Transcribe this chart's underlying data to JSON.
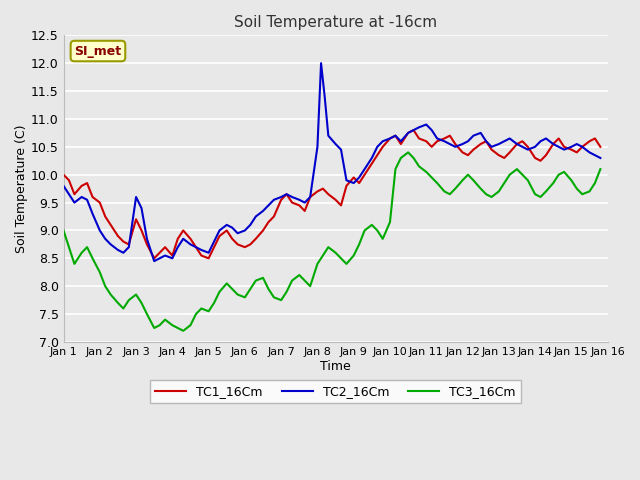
{
  "title": "Soil Temperature at -16cm",
  "xlabel": "Time",
  "ylabel": "Soil Temperature (C)",
  "ylim": [
    7.0,
    12.5
  ],
  "background_color": "#e8e8e8",
  "plot_bg_color": "#e8e8e8",
  "grid_color": "#ffffff",
  "legend_label": "SI_met",
  "legend_bg": "#ffffcc",
  "legend_border": "#999900",
  "tc1_color": "#cc0000",
  "tc2_color": "#0000cc",
  "tc3_color": "#00aa00",
  "tc1_label": "TC1_16Cm",
  "tc2_label": "TC2_16Cm",
  "tc3_label": "TC3_16Cm",
  "x_ticks": [
    1,
    2,
    3,
    4,
    5,
    6,
    7,
    8,
    9,
    10,
    11,
    12,
    13,
    14,
    15,
    16
  ],
  "x_tick_labels": [
    "Jan 1",
    "Jan 2",
    "Jan 3",
    "Jan 4",
    "Jan 5",
    "Jan 6",
    "Jan 7",
    "Jan 8",
    "Jan 9",
    "Jan 10",
    "Jan 11",
    "Jan 12",
    "Jan 13",
    "Jan 14",
    "Jan 15",
    "Jan 16"
  ],
  "TC1_x": [
    1.0,
    1.15,
    1.3,
    1.5,
    1.65,
    1.8,
    2.0,
    2.15,
    2.3,
    2.5,
    2.65,
    2.8,
    3.0,
    3.15,
    3.3,
    3.5,
    3.65,
    3.8,
    4.0,
    4.15,
    4.3,
    4.5,
    4.65,
    4.8,
    5.0,
    5.15,
    5.3,
    5.5,
    5.65,
    5.8,
    6.0,
    6.15,
    6.3,
    6.5,
    6.65,
    6.8,
    7.0,
    7.15,
    7.3,
    7.5,
    7.65,
    7.8,
    8.0,
    8.15,
    8.3,
    8.5,
    8.65,
    8.8,
    9.0,
    9.15,
    9.3,
    9.5,
    9.65,
    9.8,
    10.0,
    10.15,
    10.3,
    10.5,
    10.65,
    10.8,
    11.0,
    11.15,
    11.3,
    11.5,
    11.65,
    11.8,
    12.0,
    12.15,
    12.3,
    12.5,
    12.65,
    12.8,
    13.0,
    13.15,
    13.3,
    13.5,
    13.65,
    13.8,
    14.0,
    14.15,
    14.3,
    14.5,
    14.65,
    14.8,
    15.0,
    15.15,
    15.3,
    15.5,
    15.65,
    15.8
  ],
  "TC1_y": [
    10.0,
    9.9,
    9.65,
    9.8,
    9.85,
    9.6,
    9.5,
    9.25,
    9.1,
    8.9,
    8.8,
    8.75,
    9.2,
    9.0,
    8.75,
    8.5,
    8.6,
    8.7,
    8.55,
    8.85,
    9.0,
    8.85,
    8.7,
    8.55,
    8.5,
    8.7,
    8.9,
    9.0,
    8.85,
    8.75,
    8.7,
    8.75,
    8.85,
    9.0,
    9.15,
    9.25,
    9.55,
    9.65,
    9.5,
    9.45,
    9.35,
    9.6,
    9.7,
    9.75,
    9.65,
    9.55,
    9.45,
    9.8,
    9.95,
    9.85,
    10.0,
    10.2,
    10.35,
    10.5,
    10.65,
    10.7,
    10.55,
    10.75,
    10.8,
    10.65,
    10.6,
    10.5,
    10.6,
    10.65,
    10.7,
    10.55,
    10.4,
    10.35,
    10.45,
    10.55,
    10.6,
    10.45,
    10.35,
    10.3,
    10.4,
    10.55,
    10.6,
    10.5,
    10.3,
    10.25,
    10.35,
    10.55,
    10.65,
    10.5,
    10.45,
    10.4,
    10.5,
    10.6,
    10.65,
    10.5
  ],
  "TC2_x": [
    1.0,
    1.15,
    1.3,
    1.5,
    1.65,
    1.8,
    2.0,
    2.15,
    2.3,
    2.5,
    2.65,
    2.8,
    3.0,
    3.15,
    3.3,
    3.5,
    3.65,
    3.8,
    4.0,
    4.15,
    4.3,
    4.5,
    4.65,
    4.8,
    5.0,
    5.15,
    5.3,
    5.5,
    5.65,
    5.8,
    6.0,
    6.15,
    6.3,
    6.5,
    6.65,
    6.8,
    7.0,
    7.15,
    7.3,
    7.5,
    7.65,
    7.8,
    8.0,
    8.1,
    8.2,
    8.3,
    8.5,
    8.65,
    8.8,
    9.0,
    9.15,
    9.3,
    9.5,
    9.65,
    9.8,
    10.0,
    10.15,
    10.3,
    10.5,
    10.65,
    10.8,
    11.0,
    11.15,
    11.3,
    11.5,
    11.65,
    11.8,
    12.0,
    12.15,
    12.3,
    12.5,
    12.65,
    12.8,
    13.0,
    13.15,
    13.3,
    13.5,
    13.65,
    13.8,
    14.0,
    14.15,
    14.3,
    14.5,
    14.65,
    14.8,
    15.0,
    15.15,
    15.3,
    15.5,
    15.65,
    15.8
  ],
  "TC2_y": [
    9.8,
    9.65,
    9.5,
    9.6,
    9.55,
    9.3,
    9.0,
    8.85,
    8.75,
    8.65,
    8.6,
    8.7,
    9.6,
    9.4,
    8.85,
    8.45,
    8.5,
    8.55,
    8.5,
    8.7,
    8.85,
    8.75,
    8.7,
    8.65,
    8.6,
    8.8,
    9.0,
    9.1,
    9.05,
    8.95,
    9.0,
    9.1,
    9.25,
    9.35,
    9.45,
    9.55,
    9.6,
    9.65,
    9.6,
    9.55,
    9.5,
    9.6,
    10.5,
    12.0,
    11.4,
    10.7,
    10.55,
    10.45,
    9.9,
    9.85,
    9.95,
    10.1,
    10.3,
    10.5,
    10.6,
    10.65,
    10.7,
    10.6,
    10.75,
    10.8,
    10.85,
    10.9,
    10.8,
    10.65,
    10.6,
    10.55,
    10.5,
    10.55,
    10.6,
    10.7,
    10.75,
    10.6,
    10.5,
    10.55,
    10.6,
    10.65,
    10.55,
    10.5,
    10.45,
    10.5,
    10.6,
    10.65,
    10.55,
    10.5,
    10.45,
    10.5,
    10.55,
    10.5,
    10.4,
    10.35,
    10.3
  ],
  "TC3_x": [
    1.0,
    1.15,
    1.3,
    1.5,
    1.65,
    1.8,
    2.0,
    2.15,
    2.3,
    2.5,
    2.65,
    2.8,
    3.0,
    3.15,
    3.3,
    3.5,
    3.65,
    3.8,
    4.0,
    4.15,
    4.3,
    4.5,
    4.65,
    4.8,
    5.0,
    5.15,
    5.3,
    5.5,
    5.65,
    5.8,
    6.0,
    6.15,
    6.3,
    6.5,
    6.65,
    6.8,
    7.0,
    7.15,
    7.3,
    7.5,
    7.65,
    7.8,
    8.0,
    8.15,
    8.3,
    8.5,
    8.65,
    8.8,
    9.0,
    9.15,
    9.3,
    9.5,
    9.65,
    9.8,
    10.0,
    10.15,
    10.3,
    10.5,
    10.65,
    10.8,
    11.0,
    11.15,
    11.3,
    11.5,
    11.65,
    11.8,
    12.0,
    12.15,
    12.3,
    12.5,
    12.65,
    12.8,
    13.0,
    13.15,
    13.3,
    13.5,
    13.65,
    13.8,
    14.0,
    14.15,
    14.3,
    14.5,
    14.65,
    14.8,
    15.0,
    15.15,
    15.3,
    15.5,
    15.65,
    15.8
  ],
  "TC3_y": [
    9.0,
    8.7,
    8.4,
    8.6,
    8.7,
    8.5,
    8.25,
    8.0,
    7.85,
    7.7,
    7.6,
    7.75,
    7.85,
    7.7,
    7.5,
    7.25,
    7.3,
    7.4,
    7.3,
    7.25,
    7.2,
    7.3,
    7.5,
    7.6,
    7.55,
    7.7,
    7.9,
    8.05,
    7.95,
    7.85,
    7.8,
    7.95,
    8.1,
    8.15,
    7.95,
    7.8,
    7.75,
    7.9,
    8.1,
    8.2,
    8.1,
    8.0,
    8.4,
    8.55,
    8.7,
    8.6,
    8.5,
    8.4,
    8.55,
    8.75,
    9.0,
    9.1,
    9.0,
    8.85,
    9.15,
    10.1,
    10.3,
    10.4,
    10.3,
    10.15,
    10.05,
    9.95,
    9.85,
    9.7,
    9.65,
    9.75,
    9.9,
    10.0,
    9.9,
    9.75,
    9.65,
    9.6,
    9.7,
    9.85,
    10.0,
    10.1,
    10.0,
    9.9,
    9.65,
    9.6,
    9.7,
    9.85,
    10.0,
    10.05,
    9.9,
    9.75,
    9.65,
    9.7,
    9.85,
    10.1
  ]
}
